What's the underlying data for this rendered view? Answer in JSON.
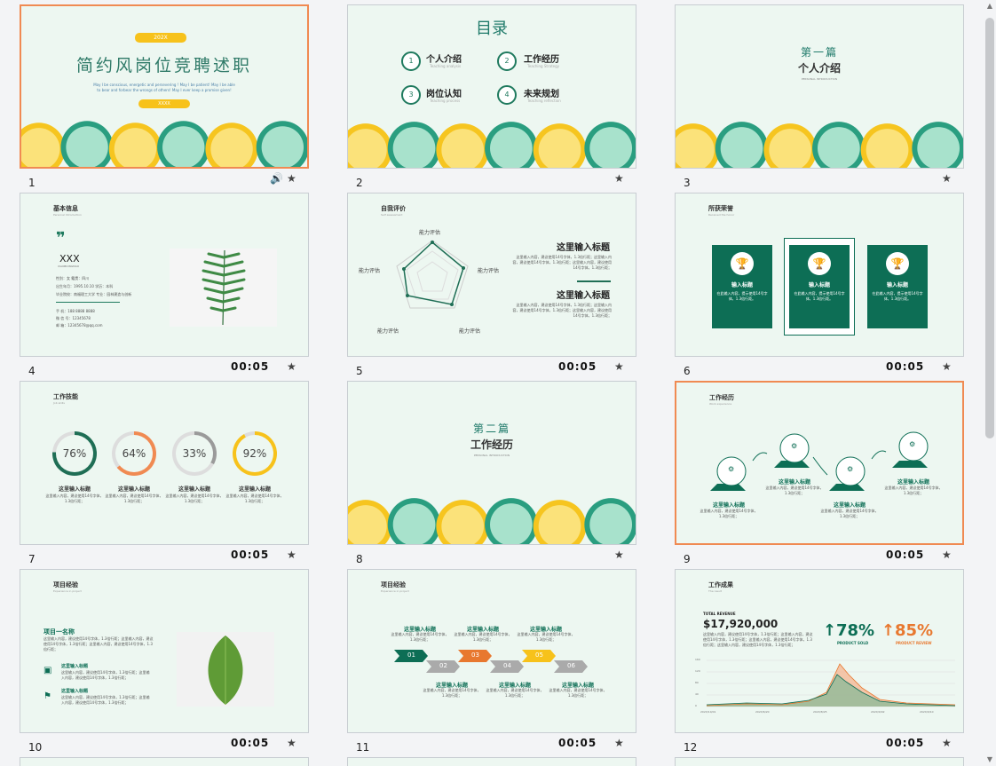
{
  "slides": [
    {
      "num": "1",
      "selected": true,
      "title": "简约风岗位竞聘述职",
      "badge_top": "202X",
      "sub1": "May I be conscious, energetic and persevering ! May I be patient! May I be able",
      "sub2": "to bear and forbear the wrongs of others! May I ever keep a promise given!",
      "badge_bottom": "XXXX",
      "star": "★",
      "speaker": "🔊"
    },
    {
      "num": "2",
      "title": "目录",
      "items": [
        {
          "n": "1",
          "t": "个人介绍",
          "s": "Teaching analysis"
        },
        {
          "n": "2",
          "t": "工作经历",
          "s": "Teaching Strategy"
        },
        {
          "n": "3",
          "t": "岗位认知",
          "s": "Teaching process"
        },
        {
          "n": "4",
          "t": "未来规划",
          "s": "Teaching reflection"
        }
      ],
      "star": "★"
    },
    {
      "num": "3",
      "kicker": "第一篇",
      "title": "个人介绍",
      "en": "PERSONAL INTRODUCTION",
      "star": "★"
    },
    {
      "num": "4",
      "title": "基本信息",
      "en": "Personal Introduction",
      "quote": "❞",
      "name": "XXX",
      "pinyin": "XIAOBIONGMAO",
      "rows": [
        "性别：女      籍贯：四川",
        "出生年月：1995.10.10   学历：本科",
        "毕业院校：南福理工大学   专业：园林建造与创新"
      ],
      "contacts": [
        "手    机：188 8888 8888",
        "微 信 号：12345678",
        "邮    箱：12345678@qq.com"
      ],
      "duration": "00:05",
      "star": "★"
    },
    {
      "num": "5",
      "title": "自我评价",
      "en": "Self assessment",
      "radar": [
        "能力评估",
        "能力评估",
        "能力评估",
        "能力评估",
        "能力评估"
      ],
      "h1": "这里输入标题",
      "h2": "这里输入标题",
      "d1": "这里输入内容，建议使用14号字体，1.3倍行距；这里输入内容，建议使用14号字体，1.3倍行距；这里输入内容，建议使用14号字体，1.3倍行距；",
      "d2": "这里输入内容，建议使用14号字体，1.3倍行距；这里输入内容，建议使用14号字体，1.3倍行距；这里输入内容，建议使用14号字体，1.3倍行距；",
      "duration": "00:05",
      "star": "★"
    },
    {
      "num": "6",
      "title": "所获荣誉",
      "en": "Received the honor",
      "cards": [
        {
          "t": "输入标题",
          "d": "在此输入内容，提示使用14号字体，1.3倍行距。"
        },
        {
          "t": "输入标题",
          "d": "在此输入内容，提示使用14号字体，1.3倍行距。"
        },
        {
          "t": "输入标题",
          "d": "在此输入内容，提示使用14号字体，1.3倍行距。"
        }
      ],
      "duration": "00:05",
      "star": "★"
    },
    {
      "num": "7",
      "title": "工作技能",
      "en": "Job skills",
      "skills": [
        {
          "p": "76%",
          "t": "这里输入标题",
          "d": "这里输入内容，建议使用14号字体，1.3倍行距；"
        },
        {
          "p": "64%",
          "t": "这里输入标题",
          "d": "这里输入内容，建议使用14号字体，1.3倍行距；"
        },
        {
          "p": "33%",
          "t": "这里输入标题",
          "d": "这里输入内容，建议使用14号字体，1.3倍行距；"
        },
        {
          "p": "92%",
          "t": "这里输入标题",
          "d": "这里输入内容，建议使用14号字体，1.3倍行距；"
        }
      ],
      "duration": "00:05",
      "star": "★"
    },
    {
      "num": "8",
      "kicker": "第二篇",
      "title": "工作经历",
      "en": "PERSONAL INTRODUCTION",
      "star": "★"
    },
    {
      "num": "9",
      "selected": true,
      "title": "工作经历",
      "en": "Work experience",
      "steps": [
        {
          "t": "这里输入标题",
          "d": "这里输入内容，建议使用14号字体，1.3倍行距；"
        },
        {
          "t": "这里输入标题",
          "d": "这里输入内容，建议使用14号字体，1.3倍行距；"
        },
        {
          "t": "这里输入标题",
          "d": "这里输入内容，建议使用14号字体，1.3倍行距；"
        },
        {
          "t": "这里输入标题",
          "d": "这里输入内容，建议使用14号字体，1.3倍行距；"
        }
      ],
      "duration": "00:05",
      "star": "★"
    },
    {
      "num": "10",
      "title": "项目经验",
      "en": "Experience in project",
      "pname": "项目一名称",
      "pdesc": "这里输入内容，建议使用14号字体，1.3倍行距；这里输入内容，建议使用14号字体，1.3倍行距；这里输入内容，建议使用14号字体，1.3倍行距；",
      "sub": [
        {
          "t": "这里输入标题",
          "d": "这里输入内容，建议使用14号字体，1.3倍行距；这里输入内容，建议使用14号字体，1.3倍行距；"
        },
        {
          "t": "这里输入标题",
          "d": "这里输入内容，建议使用14号字体，1.3倍行距；这里输入内容，建议使用14号字体，1.3倍行距；"
        }
      ],
      "duration": "00:05",
      "star": "★"
    },
    {
      "num": "11",
      "title": "项目经验",
      "en": "Experience in project",
      "arrows": [
        "01",
        "02",
        "03",
        "04",
        "05",
        "06"
      ],
      "labels": [
        "这里输入标题",
        "这里输入标题",
        "这里输入标题",
        "这里输入标题",
        "这里输入标题",
        "这里输入标题"
      ],
      "ldesc": "这里输入内容，建议使用14号字体，1.3倍行距；",
      "duration": "00:05",
      "star": "★"
    },
    {
      "num": "12",
      "title": "工作成果",
      "en": "The result",
      "rev_label": "TOTAL REVENUE",
      "rev": "$17,920,000",
      "rev_desc": "这里输入内容，建议使用14号字体，1.3倍行距；这里输入内容，建议使用14号字体，1.3倍行距；这里输入内容，建议使用14号字体，1.3倍行距；这里输入内容，建议使用14号字体，1.3倍行距；",
      "p1": "78%",
      "p1l": "PRODUCT SOLD",
      "p2": "85%",
      "p2l": "PRODUCT REVIEW",
      "ticks": [
        "160",
        "120",
        "80",
        "40",
        "0"
      ],
      "xticks": [
        "202X/10/01",
        "202X/6/20",
        "202X/8/25",
        "202X/9/02",
        "202X/9/10"
      ],
      "duration": "00:05",
      "star": "★"
    }
  ],
  "colors": {
    "green": "#0d6e55",
    "orange": "#f08a52",
    "yellow": "#f7c21b",
    "bg": "#edf7f1"
  },
  "scroll": {
    "up": "▲",
    "down": "▼"
  }
}
